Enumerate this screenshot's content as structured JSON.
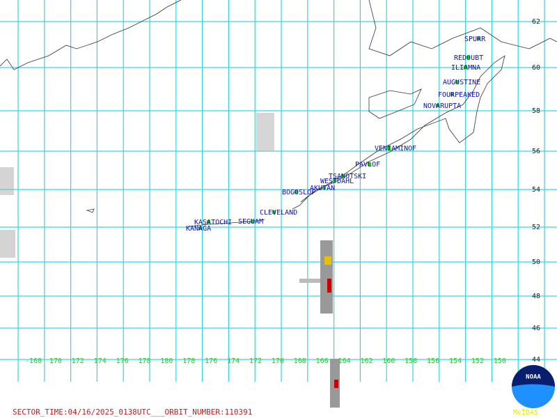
{
  "volcanoes": [
    "SPURR",
    "REDOUBT",
    "ILIAMNA",
    "AUGUSTINE",
    "FOURPEAKED",
    "NOVARUPTA",
    "VENIAMINOF",
    "PAVLOF",
    "TSANOTSKI",
    "WESTDAHL",
    "AKUTAN",
    "BOGOSLOF",
    "CLEVELAND",
    "SEGUAM",
    "KASATOCHI",
    "KANAGA"
  ],
  "latitude_labels": [
    "62",
    "60",
    "58",
    "56",
    "54",
    "52",
    "50",
    "48",
    "46",
    "44"
  ],
  "longitude_labels": [
    "-168",
    "170",
    "172",
    "174",
    "176",
    "178",
    "180",
    "178",
    "176",
    "174",
    "172",
    "170",
    "168",
    "166",
    "164",
    "162",
    "160",
    "158",
    "156",
    "154",
    "152",
    "150"
  ],
  "footer": "SECTOR_TIME:04/16/2025_0138UTC___ORBIT_NUMBER:110391",
  "logo": {
    "name": "NOAA",
    "caption": "McIDAS"
  }
}
